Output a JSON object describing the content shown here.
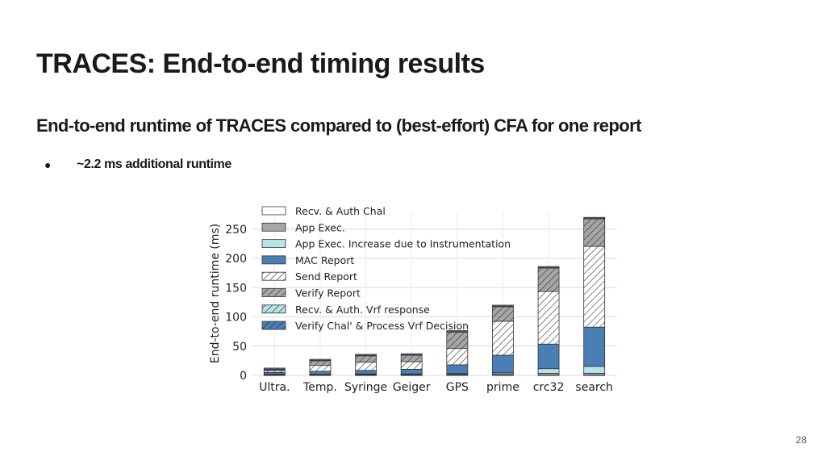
{
  "slide": {
    "title": "TRACES: End-to-end timing results",
    "subtitle": "End-to-end runtime of TRACES compared to (best-effort) CFA for one report",
    "bullets": [
      "~2.2 ms additional runtime"
    ],
    "bullet_marker": "●",
    "page_number": "28"
  },
  "colors": {
    "recv_auth_chal": "#ffffff",
    "app_exec": "#a6a6a6",
    "app_exec_increase": "#b5e3e6",
    "mac_report": "#4a7fb5",
    "send_report": "#ffffff",
    "verify_report": "#a6a6a6",
    "recv_auth_vrf": "#b5e3e6",
    "verify_chal_process_vrf": "#4a7fb5"
  },
  "chart_data": {
    "type": "bar",
    "stacked": true,
    "title": "",
    "xlabel": "",
    "ylabel": "End-to-end runtime (ms)",
    "ylim": [
      0,
      280
    ],
    "yticks": [
      0,
      50,
      100,
      150,
      200,
      250
    ],
    "grid": true,
    "legend_position": "top-left",
    "categories": [
      "Ultra.",
      "Temp.",
      "Syringe",
      "Geiger",
      "GPS",
      "prime",
      "crc32",
      "search"
    ],
    "series": [
      {
        "name": "Recv. & Auth Chal",
        "color_key": "recv_auth_chal",
        "hatch": false,
        "values": [
          0.5,
          0.5,
          0.5,
          0.5,
          0.5,
          0.5,
          0.5,
          0.5
        ]
      },
      {
        "name": "App Exec.",
        "color_key": "app_exec",
        "hatch": false,
        "values": [
          1,
          1,
          1,
          1,
          1.5,
          2,
          3,
          3
        ]
      },
      {
        "name": "App Exec. Increase due to Instrumentation",
        "color_key": "app_exec_increase",
        "hatch": false,
        "values": [
          0.5,
          0.5,
          1,
          1,
          1,
          2,
          8,
          12
        ]
      },
      {
        "name": "MAC Report",
        "color_key": "mac_report",
        "hatch": false,
        "values": [
          3,
          5,
          6,
          8,
          15,
          30,
          42,
          67
        ]
      },
      {
        "name": "Send Report",
        "color_key": "send_report",
        "hatch": true,
        "values": [
          3,
          10,
          14,
          13,
          28,
          58,
          90,
          138
        ]
      },
      {
        "name": "Verify Report",
        "color_key": "verify_report",
        "hatch": true,
        "values": [
          2,
          8,
          11,
          11,
          28,
          25,
          40,
          47
        ]
      },
      {
        "name": "Recv. & Auth. Vrf response",
        "color_key": "recv_auth_vrf",
        "hatch": true,
        "values": [
          0.5,
          0.5,
          0.5,
          0.5,
          0.5,
          0.5,
          0.5,
          0.5
        ]
      },
      {
        "name": "Verify Chal' & Process Vrf Decision",
        "color_key": "verify_chal_process_vrf",
        "hatch": true,
        "values": [
          2,
          2,
          2,
          2,
          2,
          2,
          2,
          2
        ]
      }
    ]
  }
}
